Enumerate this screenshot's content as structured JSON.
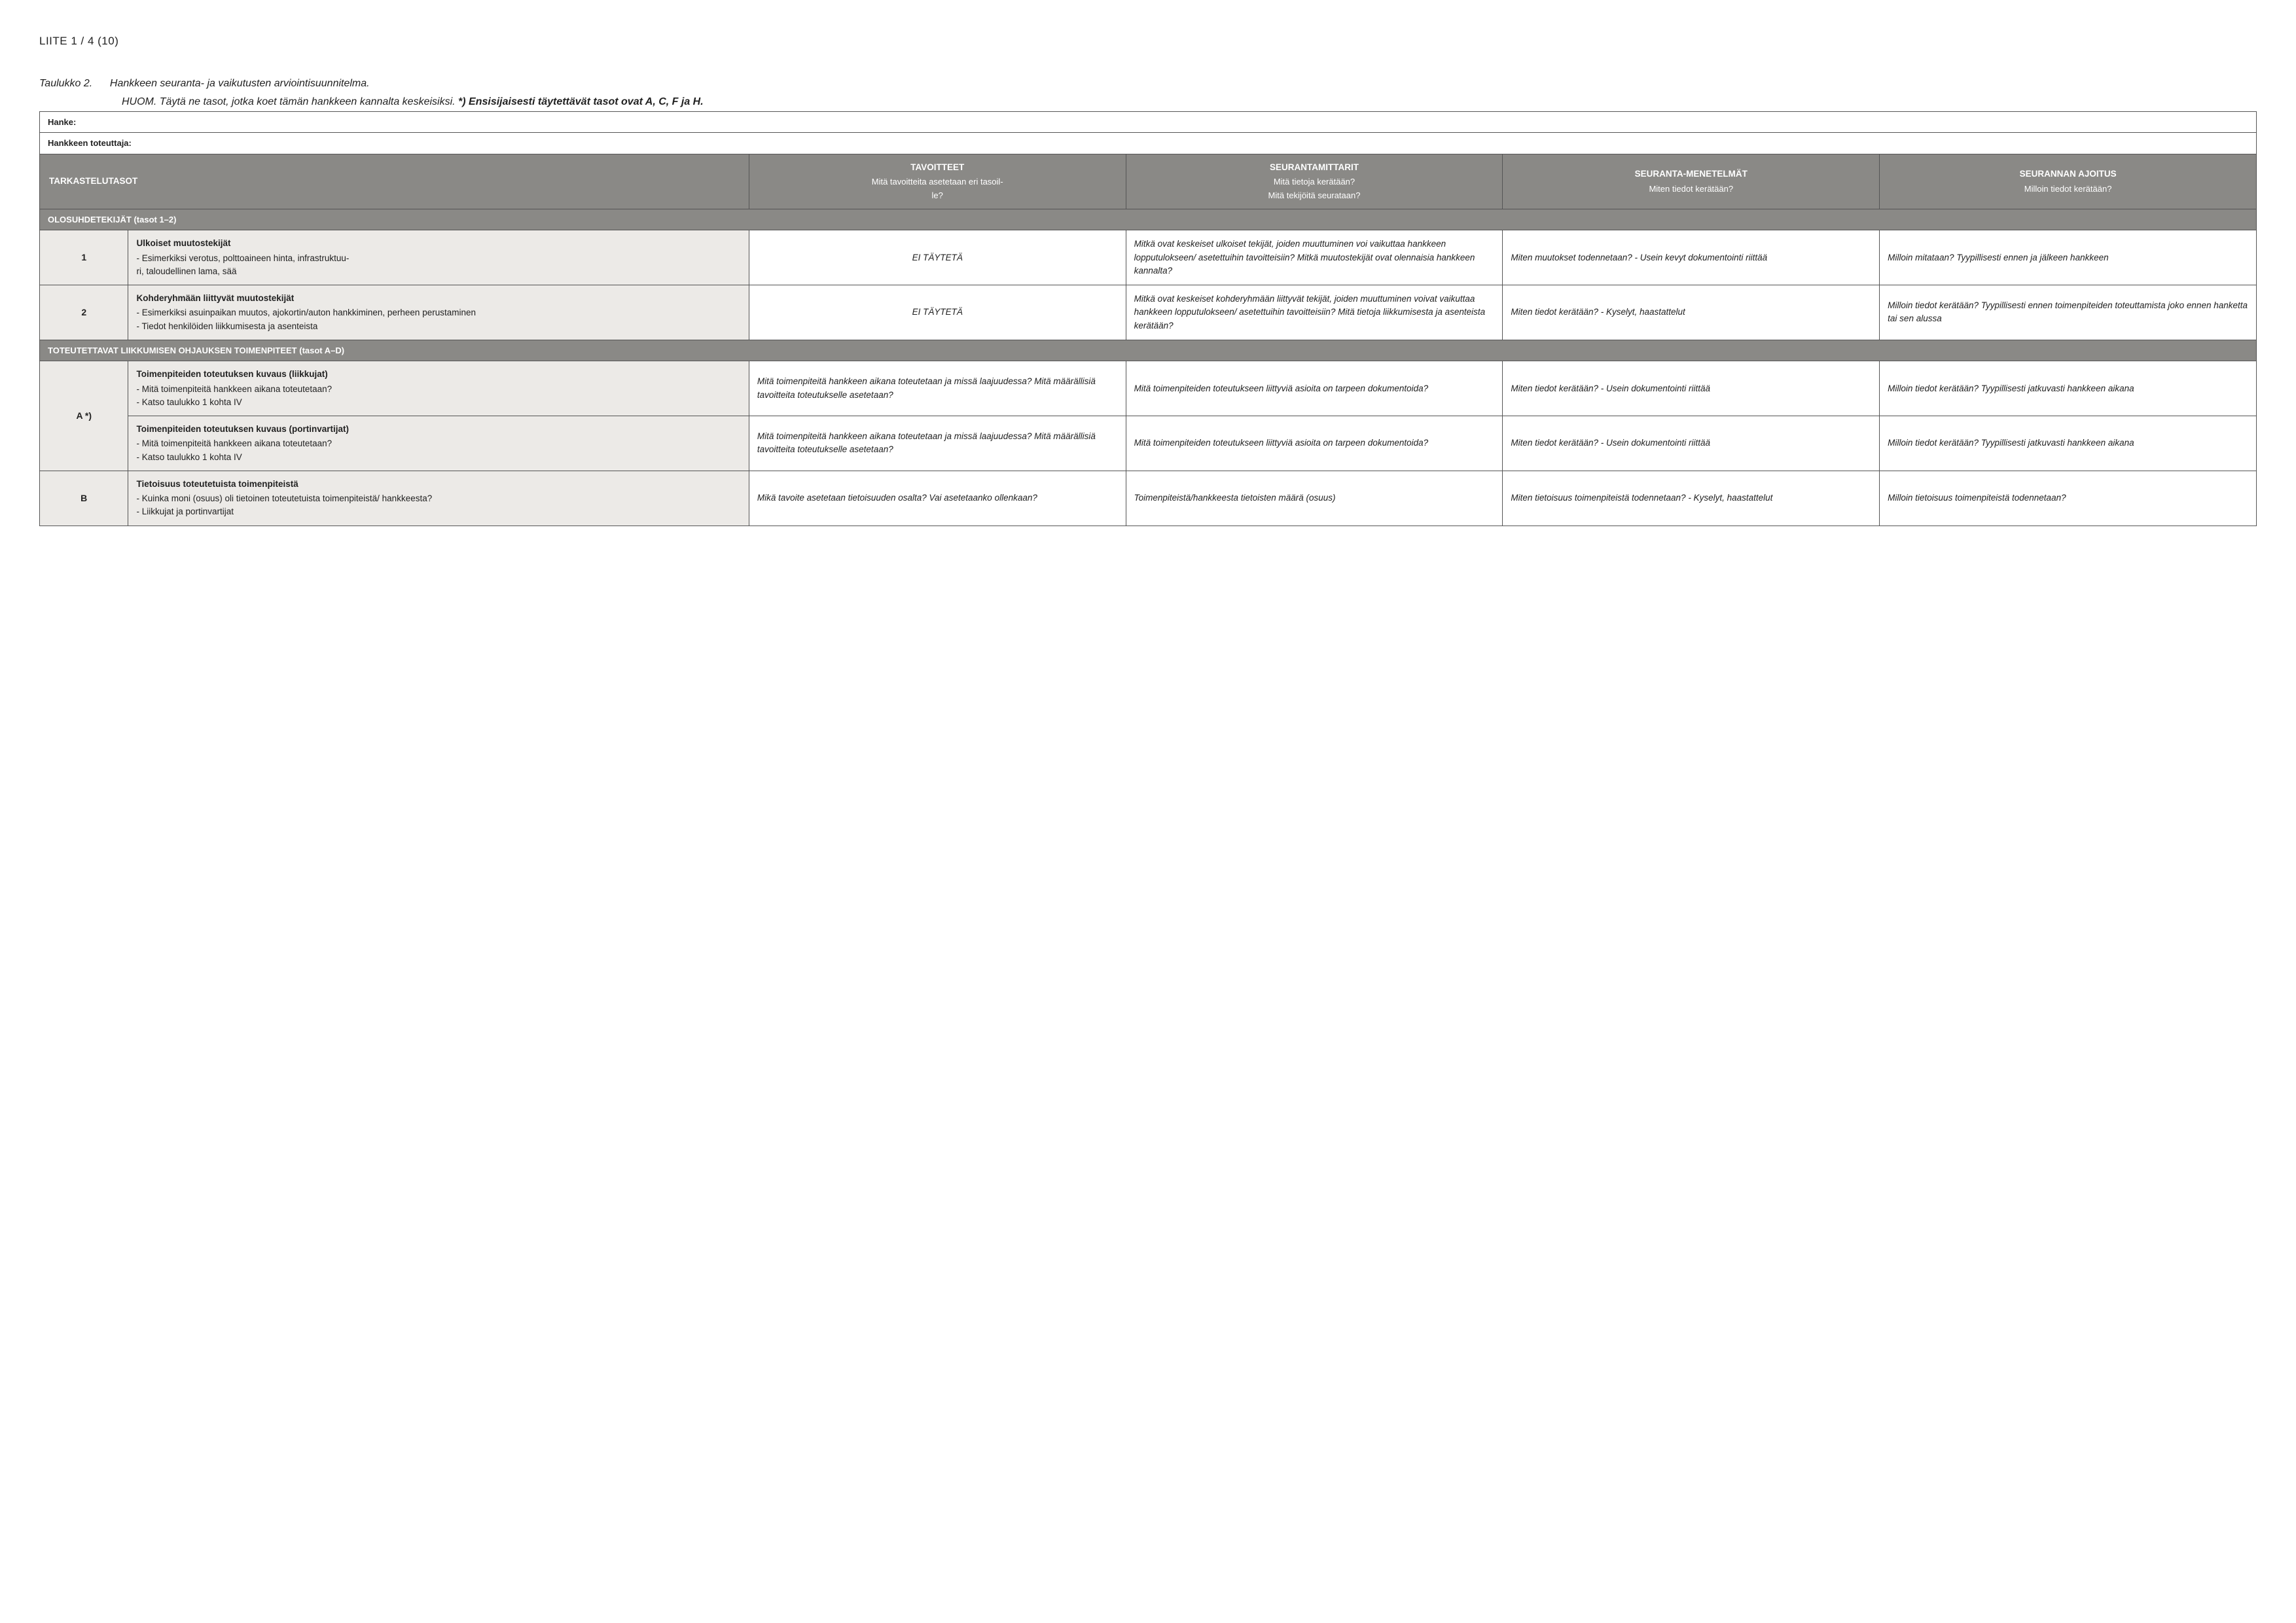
{
  "header": "LIITE 1 / 4 (10)",
  "caption": {
    "label": "Taulukko 2.",
    "text": "Hankkeen seuranta- ja vaikutusten arviointisuunnitelma.",
    "line2a": "HUOM. Täytä ne tasot, jotka koet tämän hankkeen kannalta keskeisiksi. ",
    "line2b": "*) Ensisijaisesti täytettävät tasot ovat A, C, F ja H."
  },
  "meta": {
    "hanke": "Hanke:",
    "toteuttaja": "Hankkeen toteuttaja:"
  },
  "columns": {
    "c0": {
      "title": "TARKASTELUTASOT",
      "sub": ""
    },
    "c1": {
      "title": "TAVOITTEET",
      "sub1": "Mitä tavoitteita asetetaan eri tasoil-",
      "sub2": "le?"
    },
    "c2": {
      "title": "SEURANTAMITTARIT",
      "sub1": "Mitä tietoja kerätään?",
      "sub2": "Mitä tekijöitä seurataan?"
    },
    "c3": {
      "title": "SEURANTA-MENETELMÄT",
      "sub1": "Miten tiedot kerätään?"
    },
    "c4": {
      "title": "SEURANNAN AJOITUS",
      "sub1": "Milloin tiedot kerätään?"
    }
  },
  "sections": {
    "s1": "OLOSUHDETEKIJÄT (tasot 1–2)",
    "s2": "TOTEUTETTAVAT LIIKKUMISEN OHJAUKSEN TOIMENPITEET (tasot A–D)"
  },
  "rows": {
    "r1": {
      "level": "1",
      "title": "Ulkoiset muutostekijät",
      "d1": "- Esimerkiksi verotus, polttoaineen hinta, infrastruktuu-",
      "d2": "ri, taloudellinen lama, sää",
      "tavoite": "EI TÄYTETÄ",
      "mittari": "Mitkä ovat keskeiset ulkoiset tekijät, joiden muuttuminen voi vaikuttaa hankkeen lopputulokseen/ asetettuihin tavoitteisiin? Mitkä muutostekijät ovat olennaisia hankkeen kannalta?",
      "menetelma": "Miten muutokset todennetaan? - Usein kevyt dokumentointi riittää",
      "ajoitus": "Milloin mitataan?\nTyypillisesti ennen ja jälkeen hankkeen"
    },
    "r2": {
      "level": "2",
      "title": "Kohderyhmään liittyvät muutostekijät",
      "d1": "- Esimerkiksi asuinpaikan muutos, ajokortin/auton hankkiminen, perheen perustaminen",
      "d2": "- Tiedot henkilöiden liikkumisesta ja asenteista",
      "tavoite": "EI TÄYTETÄ",
      "mittari": "Mitkä ovat keskeiset kohderyhmään liittyvät tekijät, joiden muuttuminen voivat vaikuttaa hankkeen lopputulokseen/ asetettuihin tavoitteisiin? Mitä tietoja liikkumisesta ja asenteista kerätään?",
      "menetelma": "Miten tiedot kerätään? - Kyselyt, haastattelut",
      "ajoitus": "Milloin tiedot kerätään?\nTyypillisesti ennen toimenpiteiden toteuttamista joko ennen hanketta tai sen alussa"
    },
    "rA": {
      "level": "A *)",
      "sub1": {
        "title": "Toimenpiteiden toteutuksen kuvaus (liikkujat)",
        "d1": "- Mitä toimenpiteitä hankkeen aikana toteutetaan?",
        "d2": "- Katso taulukko 1 kohta IV",
        "tavoite": "Mitä toimenpiteitä hankkeen aikana toteutetaan ja missä laajuudessa? Mitä määrällisiä tavoitteita toteutukselle asetetaan?",
        "mittari": "Mitä toimenpiteiden toteutukseen liittyviä asioita on tarpeen dokumentoida?",
        "menetelma": "Miten tiedot kerätään? - Usein dokumentointi riittää",
        "ajoitus": "Milloin tiedot kerätään?\nTyypillisesti jatkuvasti hankkeen aikana"
      },
      "sub2": {
        "title": "Toimenpiteiden toteutuksen kuvaus (portinvartijat)",
        "d1": "- Mitä toimenpiteitä hankkeen aikana toteutetaan?",
        "d2": "- Katso taulukko 1 kohta IV",
        "tavoite": "Mitä toimenpiteitä hankkeen aikana toteutetaan ja missä laajuudessa? Mitä määrällisiä tavoitteita toteutukselle asetetaan?",
        "mittari": "Mitä toimenpiteiden toteutukseen liittyviä asioita on tarpeen dokumentoida?",
        "menetelma": "Miten tiedot kerätään? - Usein dokumentointi riittää",
        "ajoitus": "Milloin tiedot kerätään?\nTyypillisesti jatkuvasti hankkeen aikana"
      }
    },
    "rB": {
      "level": "B",
      "title": "Tietoisuus toteutetuista toimenpiteistä",
      "d1": "- Kuinka moni (osuus) oli tietoinen toteutetuista toimenpiteistä/ hankkeesta?",
      "d2": "- Liikkujat ja portinvartijat",
      "tavoite": "Mikä tavoite asetetaan tietoisuuden osalta? Vai asetetaanko ollenkaan?",
      "mittari": "Toimenpiteistä/hankkeesta tietoisten määrä (osuus)",
      "menetelma": "Miten tietoisuus toimenpiteistä todennetaan? - Kyselyt, haastattelut",
      "ajoitus": "Milloin tietoisuus toimenpiteistä todennetaan?"
    }
  }
}
